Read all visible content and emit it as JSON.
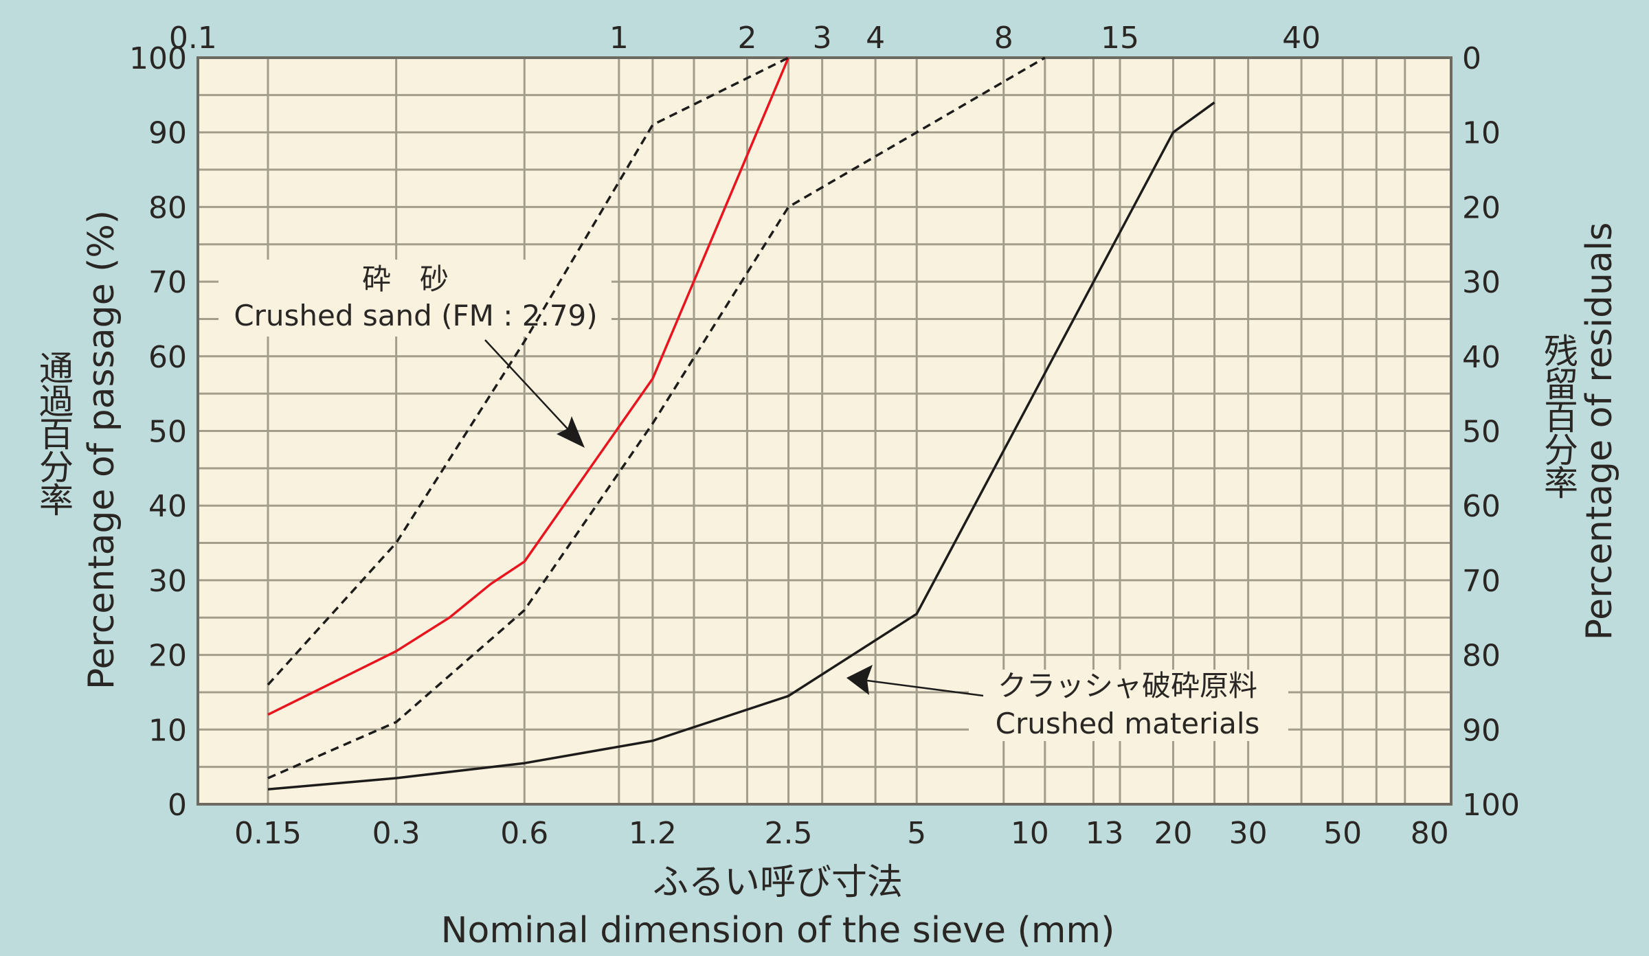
{
  "chart_data": {
    "type": "line",
    "x_scale": "log",
    "xlim": [
      0.1,
      90
    ],
    "ylim": [
      0,
      100
    ],
    "grid": true,
    "colors": {
      "background": "#bddcdb",
      "plot": "#f8f2df",
      "grid": "#a39d8c",
      "crushed_sand": "#e8141e",
      "limits": "#1e1c1b",
      "crushed_materials": "#1e1c1b"
    },
    "x_ticks_bottom": [
      "0.15",
      "0.3",
      "0.6",
      "1.2",
      "2.5",
      "5",
      "10",
      "13",
      "20",
      "30",
      "50",
      "80"
    ],
    "x_ticks_top": [
      "0.1",
      "1",
      "2",
      "3",
      "4",
      "8",
      "15",
      "40"
    ],
    "y_ticks_left": [
      "0",
      "10",
      "20",
      "30",
      "40",
      "50",
      "60",
      "70",
      "80",
      "90",
      "100"
    ],
    "y_ticks_right": [
      "100",
      "90",
      "80",
      "70",
      "60",
      "50",
      "40",
      "30",
      "20",
      "10",
      "0"
    ],
    "x_gridlines": [
      0.15,
      0.3,
      0.6,
      1,
      1.2,
      1.5,
      2,
      2.5,
      3,
      4,
      5,
      8,
      10,
      13,
      15,
      20,
      25,
      30,
      40,
      50,
      60,
      70
    ],
    "y_grid_step": 5,
    "xlabel_jp": "ふるい呼び寸法",
    "xlabel": "Nominal dimension of the sieve (mm)",
    "ylabel_jp": "通過百分率",
    "ylabel": "Percentage of passage (%)",
    "ylabel_right_jp": "残留百分率",
    "ylabel_right": "Percentage of residuals",
    "series": [
      {
        "key": "crushed-sand",
        "style": "solid",
        "color": "#e8141e",
        "x": [
          0.15,
          0.3,
          0.4,
          0.5,
          0.6,
          1.2,
          2.5
        ],
        "y": [
          12,
          20.5,
          25,
          29.5,
          32.5,
          57,
          100
        ]
      },
      {
        "key": "upper-limit",
        "style": "dashed",
        "color": "#1e1c1b",
        "x": [
          0.15,
          0.3,
          0.6,
          1.2,
          2.5
        ],
        "y": [
          16,
          35,
          62,
          91,
          100
        ]
      },
      {
        "key": "lower-limit",
        "style": "dashed",
        "color": "#1e1c1b",
        "x": [
          0.15,
          0.3,
          0.6,
          1.2,
          2.5,
          5,
          10
        ],
        "y": [
          3.5,
          11,
          26,
          51,
          80,
          90,
          100
        ]
      },
      {
        "key": "crushed-materials",
        "style": "solid",
        "color": "#1e1c1b",
        "x": [
          0.15,
          0.3,
          0.6,
          1.2,
          2.5,
          5,
          20,
          25
        ],
        "y": [
          2,
          3.5,
          5.5,
          8.5,
          14.5,
          25.5,
          90,
          94
        ]
      }
    ],
    "annotations": {
      "crushed_sand_jp": "砕　砂",
      "crushed_sand": "Crushed sand (FM : 2.79)",
      "crushed_materials_jp": "クラッシャ破砕原料",
      "crushed_materials": "Crushed materials"
    }
  }
}
